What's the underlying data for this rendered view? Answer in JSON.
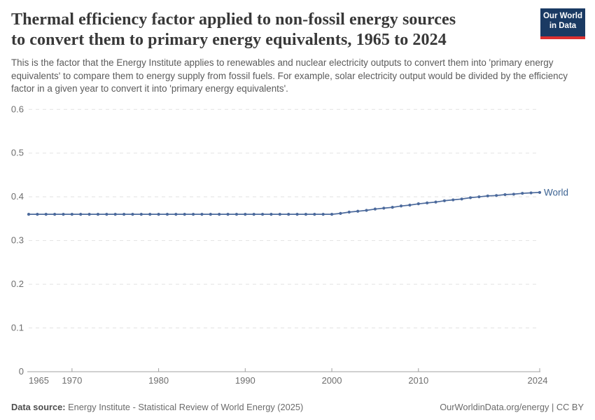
{
  "logo": {
    "line1": "Our World",
    "line2": "in Data"
  },
  "header": {
    "title_line1": "Thermal efficiency factor applied to non-fossil energy sources",
    "title_line2": "to convert them to primary energy equivalents, 1965 to 2024",
    "subtitle": "This is the factor that the Energy Institute applies to renewables and nuclear electricity outputs to convert them into 'primary energy equivalents' to compare them to energy supply from fossil fuels. For example, solar electricity output would be divided by the efficiency factor in a given year to convert it into 'primary energy equivalents'."
  },
  "footer": {
    "data_source_label": "Data source:",
    "data_source": "Energy Institute - Statistical Review of World Energy (2025)",
    "attribution": "OurWorldinData.org/energy | CC BY"
  },
  "colors": {
    "series_blue": "#4c6a9c",
    "series_label_blue": "#3d6493",
    "gridline_gray": "#e2e2e2",
    "axis_gray": "#a0a0a0",
    "tick_label_gray": "#6e6e6e",
    "logo_navy": "#1a3a63",
    "logo_red": "#dc3030"
  },
  "chart_data": {
    "type": "line",
    "title": "Thermal efficiency factor applied to non-fossil energy sources to convert them to primary energy equivalents, 1965 to 2024",
    "xlabel": "",
    "ylabel": "",
    "xlim": [
      1965,
      2024
    ],
    "ylim": [
      0,
      0.6
    ],
    "grid": "horizontal-dashed",
    "legend_position": "line-end-label",
    "x_ticks": [
      {
        "year": 1965,
        "label": "1965"
      },
      {
        "year": 1970,
        "label": "1970"
      },
      {
        "year": 1980,
        "label": "1980"
      },
      {
        "year": 1990,
        "label": "1990"
      },
      {
        "year": 2000,
        "label": "2000"
      },
      {
        "year": 2010,
        "label": "2010"
      },
      {
        "year": 2024,
        "label": "2024"
      }
    ],
    "y_ticks": [
      {
        "value": 0,
        "label": "0"
      },
      {
        "value": 0.1,
        "label": "0.1"
      },
      {
        "value": 0.2,
        "label": "0.2"
      },
      {
        "value": 0.3,
        "label": "0.3"
      },
      {
        "value": 0.4,
        "label": "0.4"
      },
      {
        "value": 0.5,
        "label": "0.5"
      },
      {
        "value": 0.6,
        "label": "0.6"
      }
    ],
    "series": [
      {
        "name": "World",
        "color": "#4c6a9c",
        "x": [
          1965,
          1966,
          1967,
          1968,
          1969,
          1970,
          1971,
          1972,
          1973,
          1974,
          1975,
          1976,
          1977,
          1978,
          1979,
          1980,
          1981,
          1982,
          1983,
          1984,
          1985,
          1986,
          1987,
          1988,
          1989,
          1990,
          1991,
          1992,
          1993,
          1994,
          1995,
          1996,
          1997,
          1998,
          1999,
          2000,
          2001,
          2002,
          2003,
          2004,
          2005,
          2006,
          2007,
          2008,
          2009,
          2010,
          2011,
          2012,
          2013,
          2014,
          2015,
          2016,
          2017,
          2018,
          2019,
          2020,
          2021,
          2022,
          2023,
          2024
        ],
        "values": [
          0.36,
          0.36,
          0.36,
          0.36,
          0.36,
          0.36,
          0.36,
          0.36,
          0.36,
          0.36,
          0.36,
          0.36,
          0.36,
          0.36,
          0.36,
          0.36,
          0.36,
          0.36,
          0.36,
          0.36,
          0.36,
          0.36,
          0.36,
          0.36,
          0.36,
          0.36,
          0.36,
          0.36,
          0.36,
          0.36,
          0.36,
          0.36,
          0.36,
          0.36,
          0.36,
          0.36,
          0.362,
          0.365,
          0.367,
          0.369,
          0.372,
          0.374,
          0.376,
          0.379,
          0.381,
          0.384,
          0.386,
          0.388,
          0.391,
          0.393,
          0.395,
          0.398,
          0.4,
          0.402,
          0.403,
          0.405,
          0.406,
          0.408,
          0.409,
          0.41
        ]
      }
    ]
  }
}
